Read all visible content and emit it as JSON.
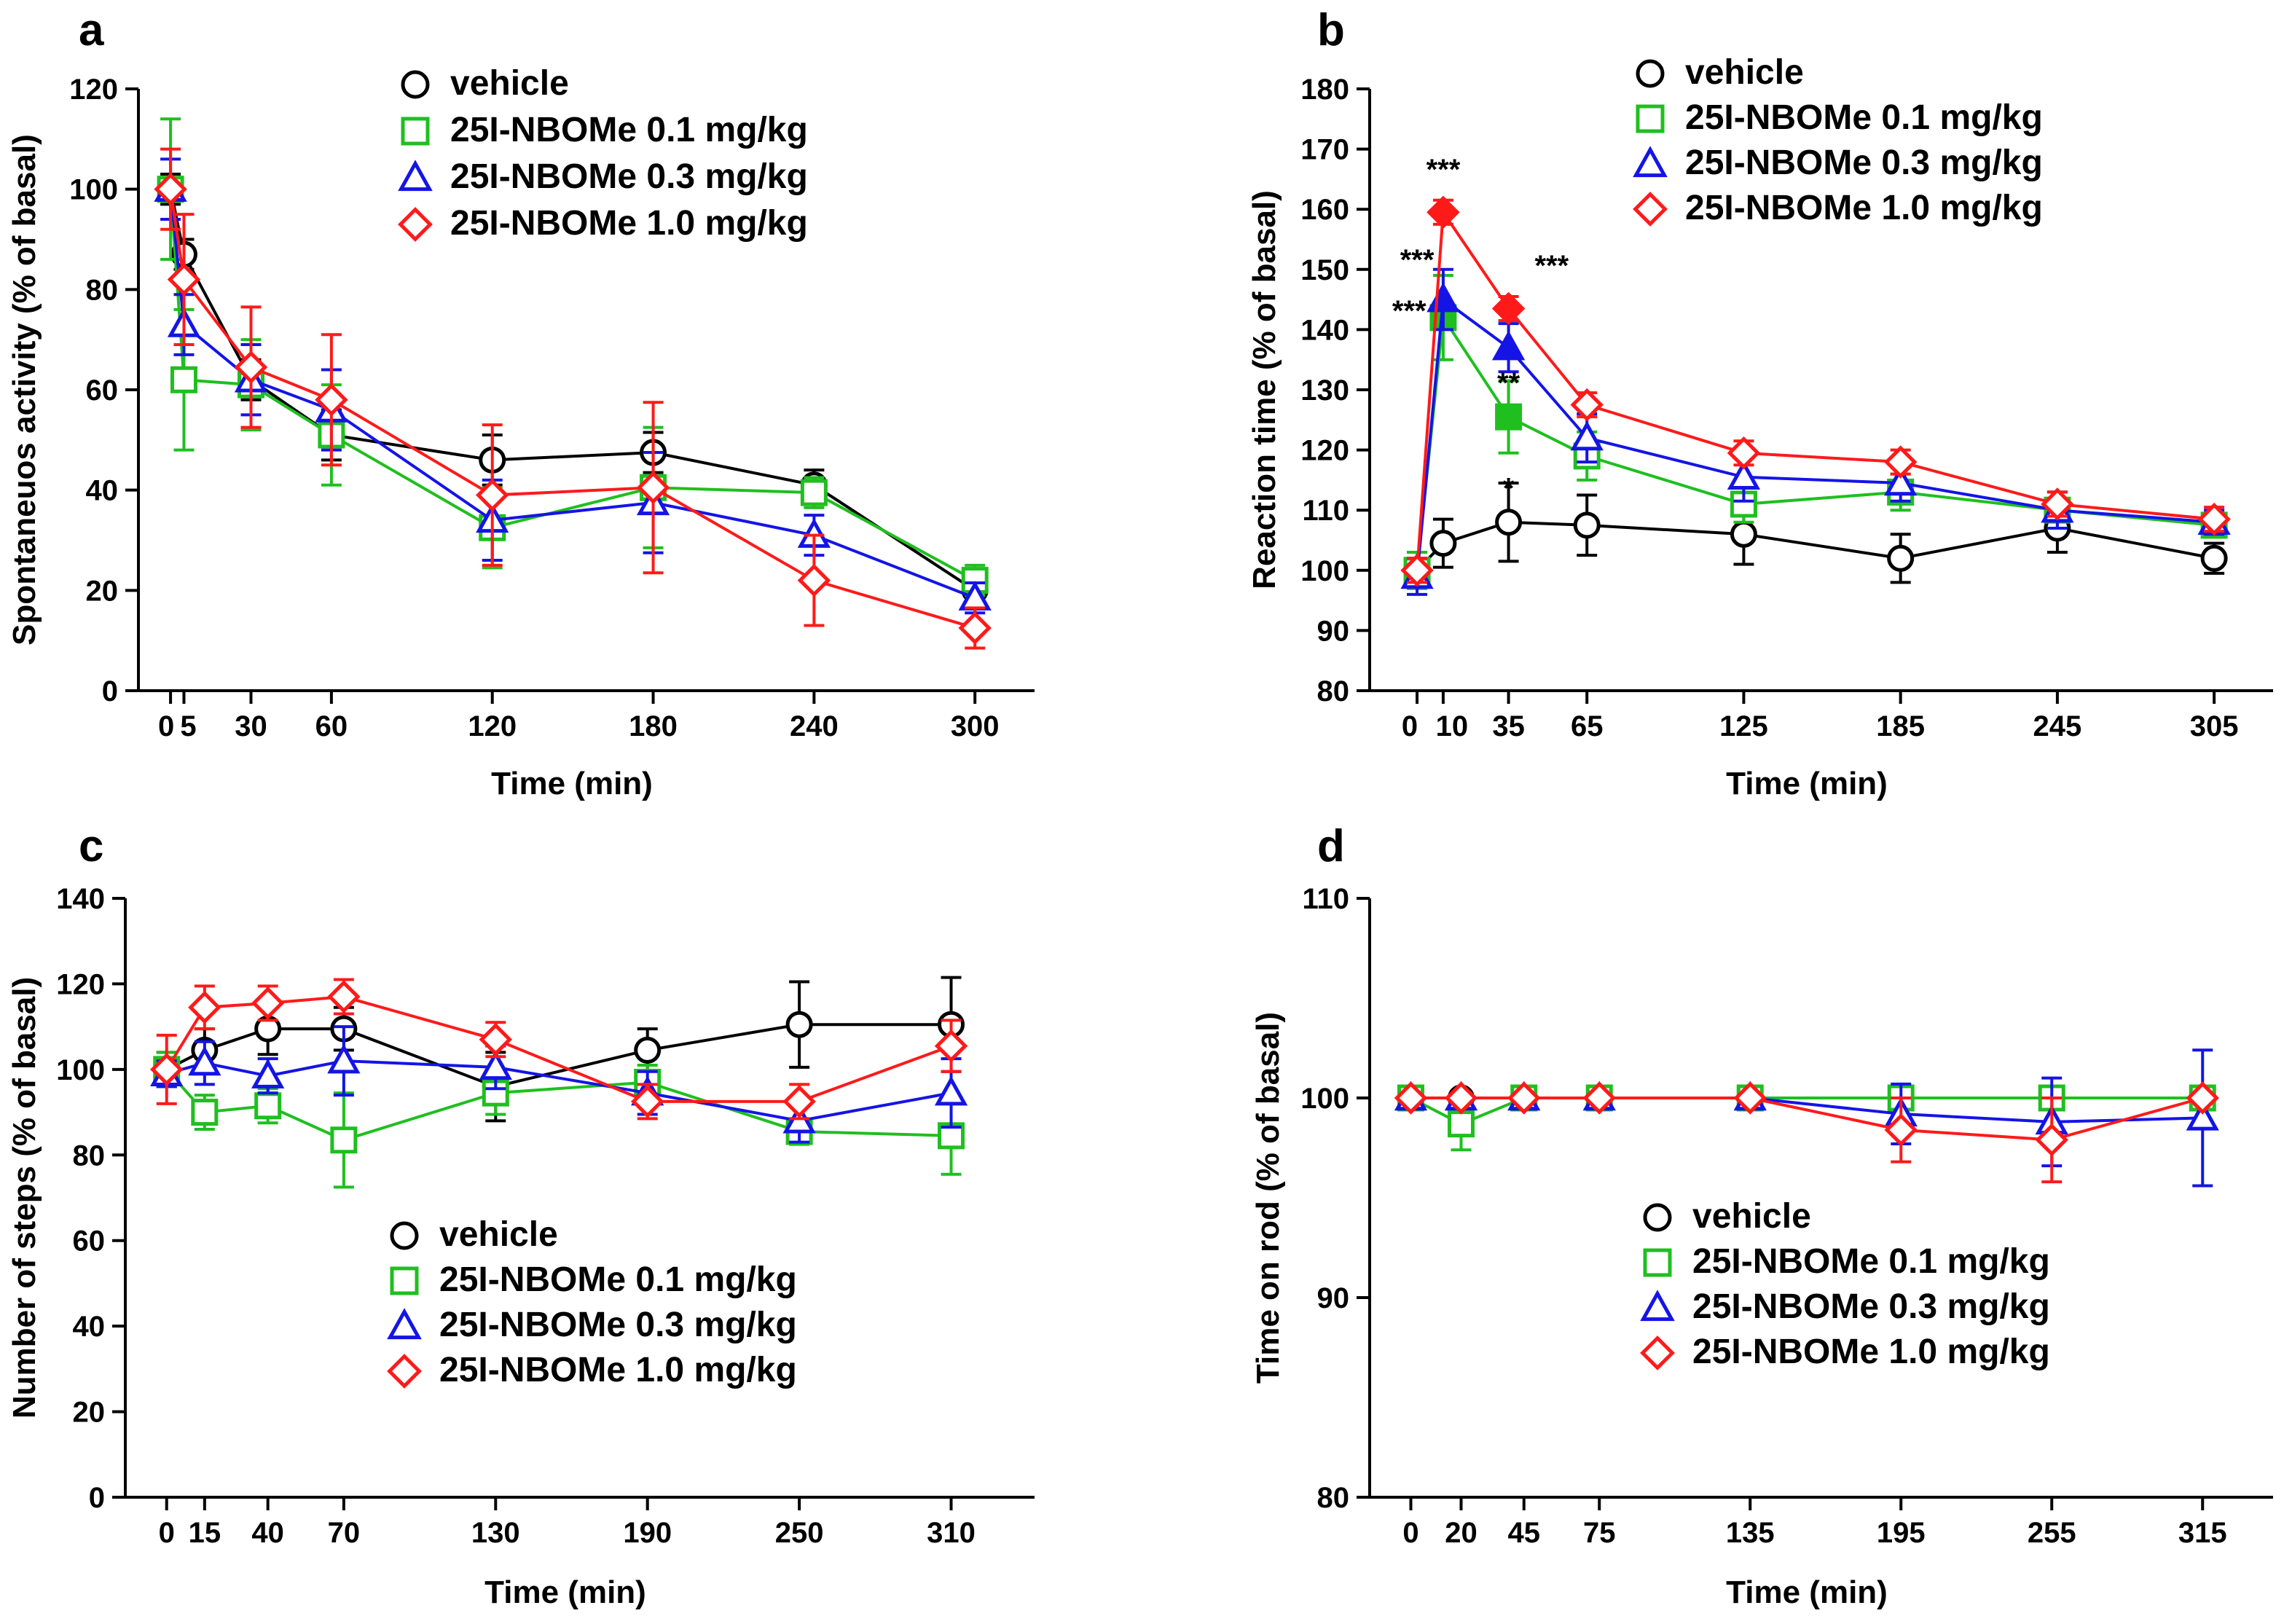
{
  "colors": {
    "vehicle": "#000000",
    "dose_0_1": "#1fbf1f",
    "dose_0_3": "#1414e6",
    "dose_1_0": "#ff1a1a"
  },
  "chart_data": [
    {
      "panel": "a",
      "type": "line",
      "xlabel": "Time (min)",
      "ylabel": "Spontaneuos activity (% of basal)",
      "ylim": [
        0,
        120
      ],
      "yticks": [
        0,
        20,
        40,
        60,
        80,
        100,
        120
      ],
      "xlim": [
        -6,
        310
      ],
      "xticks": [
        0,
        5,
        30,
        60,
        120,
        180,
        240,
        300
      ],
      "xtick_labels": [
        "0",
        "5",
        "30",
        "60",
        "120",
        "180",
        "240",
        "300"
      ],
      "legend": [
        "vehicle",
        "25I-NBOMe 0.1 mg/kg",
        "25I-NBOMe 0.3 mg/kg",
        "25I-NBOMe 1.0 mg/kg"
      ],
      "series": [
        {
          "name": "vehicle",
          "marker": "circle",
          "color": "#000000",
          "x": [
            0,
            5,
            30,
            60,
            120,
            180,
            240,
            300
          ],
          "y": [
            100,
            87,
            62,
            51,
            46,
            47.5,
            41,
            20
          ],
          "err": [
            3,
            3,
            4,
            5,
            5,
            4,
            3,
            3
          ],
          "filled": []
        },
        {
          "name": "25I-NBOMe 0.1 mg/kg",
          "marker": "square",
          "color": "#1fbf1f",
          "x": [
            0,
            5,
            30,
            60,
            120,
            180,
            240,
            300
          ],
          "y": [
            100,
            62,
            61,
            51,
            32.5,
            40.5,
            39.5,
            22
          ],
          "err": [
            14,
            14,
            9,
            10,
            8,
            12,
            3,
            3
          ],
          "filled": []
        },
        {
          "name": "25I-NBOMe 0.3 mg/kg",
          "marker": "triangle",
          "color": "#1414e6",
          "x": [
            0,
            5,
            30,
            60,
            120,
            180,
            240,
            300
          ],
          "y": [
            100,
            73,
            62,
            56,
            34,
            37.5,
            31,
            18.5
          ],
          "err": [
            6,
            6,
            7,
            8,
            8,
            10,
            4,
            3
          ],
          "filled": []
        },
        {
          "name": "25I-NBOMe 1.0 mg/kg",
          "marker": "diamond",
          "color": "#ff1a1a",
          "x": [
            0,
            5,
            30,
            60,
            120,
            180,
            240,
            300
          ],
          "y": [
            100,
            82,
            64.5,
            58,
            39,
            40.5,
            22,
            12.5
          ],
          "err": [
            8,
            13,
            12,
            13,
            14,
            17,
            9,
            4
          ],
          "filled": []
        }
      ],
      "annotations": []
    },
    {
      "panel": "b",
      "type": "line",
      "xlabel": "Time (min)",
      "ylabel": "Reaction time (% of basal)",
      "ylim": [
        80,
        180
      ],
      "yticks": [
        80,
        90,
        100,
        110,
        120,
        130,
        140,
        150,
        160,
        170,
        180
      ],
      "xlim": [
        -12,
        315
      ],
      "xticks": [
        0,
        10,
        35,
        65,
        125,
        185,
        245,
        305
      ],
      "xtick_labels": [
        "0",
        "10",
        "35",
        "65",
        "125",
        "185",
        "245",
        "305"
      ],
      "legend": [
        "vehicle",
        "25I-NBOMe 0.1 mg/kg",
        "25I-NBOMe 0.3 mg/kg",
        "25I-NBOMe 1.0 mg/kg"
      ],
      "series": [
        {
          "name": "vehicle",
          "marker": "circle",
          "color": "#000000",
          "x": [
            0,
            10,
            35,
            65,
            125,
            185,
            245,
            305
          ],
          "y": [
            100,
            104.5,
            108,
            107.5,
            106,
            102,
            107,
            102
          ],
          "err": [
            3,
            4,
            6.5,
            5,
            5,
            4,
            4,
            2.5
          ],
          "filled": []
        },
        {
          "name": "25I-NBOMe 0.1 mg/kg",
          "marker": "square",
          "color": "#1fbf1f",
          "x": [
            0,
            10,
            35,
            65,
            125,
            185,
            245,
            305
          ],
          "y": [
            100,
            142,
            125.5,
            119,
            111,
            113,
            110,
            107.5
          ],
          "err": [
            3,
            7,
            6,
            4,
            3,
            3,
            3,
            2
          ],
          "filled": [
            1,
            2
          ]
        },
        {
          "name": "25I-NBOMe 0.3 mg/kg",
          "marker": "triangle",
          "color": "#1414e6",
          "x": [
            0,
            10,
            35,
            65,
            125,
            185,
            245,
            305
          ],
          "y": [
            99,
            145,
            137,
            122,
            115.5,
            114.5,
            110,
            108
          ],
          "err": [
            3,
            5,
            4,
            4,
            4,
            3,
            3,
            2
          ],
          "filled": [
            1,
            2
          ]
        },
        {
          "name": "25I-NBOMe 1.0 mg/kg",
          "marker": "diamond",
          "color": "#ff1a1a",
          "x": [
            0,
            10,
            35,
            65,
            125,
            185,
            245,
            305
          ],
          "y": [
            100,
            159.5,
            143.5,
            127.5,
            119.5,
            118,
            111,
            108.5
          ],
          "err": [
            2,
            2,
            2,
            2,
            2,
            2,
            2,
            2
          ],
          "filled": [
            1,
            2
          ]
        }
      ],
      "annotations": [
        {
          "text": "***",
          "x": 10,
          "y": 165,
          "anchor": "middle"
        },
        {
          "text": "***",
          "x": 0,
          "y": 150,
          "anchor": "middle"
        },
        {
          "text": "***",
          "x": -3,
          "y": 141.5,
          "anchor": "middle"
        },
        {
          "text": "***",
          "x": 45,
          "y": 149,
          "anchor": "start"
        },
        {
          "text": "**",
          "x": 35,
          "y": 129.5,
          "anchor": "middle"
        },
        {
          "text": "*",
          "x": 35,
          "y": 112,
          "anchor": "middle"
        }
      ]
    },
    {
      "panel": "c",
      "type": "line",
      "xlabel": "Time (min)",
      "ylabel": "Number of steps (% of basal)",
      "ylim": [
        0,
        140
      ],
      "yticks": [
        0,
        20,
        40,
        60,
        80,
        100,
        120,
        140
      ],
      "xlim": [
        -10,
        330
      ],
      "xticks": [
        0,
        15,
        40,
        70,
        130,
        190,
        250,
        310
      ],
      "xtick_labels": [
        "0",
        "15",
        "40",
        "70",
        "130",
        "190",
        "250",
        "310"
      ],
      "legend": [
        "vehicle",
        "25I-NBOMe 0.1 mg/kg",
        "25I-NBOMe 0.3 mg/kg",
        "25I-NBOMe 1.0 mg/kg"
      ],
      "series": [
        {
          "name": "vehicle",
          "marker": "circle",
          "color": "#000000",
          "x": [
            0,
            15,
            40,
            70,
            130,
            190,
            250,
            310
          ],
          "y": [
            100,
            104.5,
            109.5,
            109.5,
            96,
            104.5,
            110.5,
            110.5
          ],
          "err": [
            4,
            5,
            6,
            5,
            8,
            5,
            10,
            11
          ],
          "filled": []
        },
        {
          "name": "25I-NBOMe 0.1 mg/kg",
          "marker": "square",
          "color": "#1fbf1f",
          "x": [
            0,
            15,
            40,
            70,
            130,
            190,
            250,
            310
          ],
          "y": [
            100,
            90,
            91.5,
            83.5,
            94.5,
            97,
            85.5,
            84.5
          ],
          "err": [
            4,
            4,
            4,
            11,
            5,
            4,
            3,
            9
          ],
          "filled": []
        },
        {
          "name": "25I-NBOMe 0.3 mg/kg",
          "marker": "triangle",
          "color": "#1414e6",
          "x": [
            0,
            15,
            40,
            70,
            130,
            190,
            250,
            310
          ],
          "y": [
            99,
            101.5,
            98.5,
            102,
            100.5,
            94.5,
            88,
            94.5
          ],
          "err": [
            3,
            5,
            4,
            8,
            5,
            5,
            5,
            8
          ],
          "filled": []
        },
        {
          "name": "25I-NBOMe 1.0 mg/kg",
          "marker": "diamond",
          "color": "#ff1a1a",
          "x": [
            0,
            15,
            40,
            70,
            130,
            190,
            250,
            310
          ],
          "y": [
            100,
            114.5,
            115.5,
            117,
            107,
            92.5,
            92.5,
            105.5
          ],
          "err": [
            8,
            5,
            4,
            4,
            4,
            4,
            4,
            6
          ],
          "filled": []
        }
      ],
      "annotations": []
    },
    {
      "panel": "d",
      "type": "line",
      "xlabel": "Time (min)",
      "ylabel": "Time on rod (% of basal)",
      "ylim": [
        80,
        110
      ],
      "yticks": [
        80,
        90,
        100,
        110
      ],
      "xlim": [
        -10,
        330
      ],
      "xticks": [
        0,
        20,
        45,
        75,
        135,
        195,
        255,
        315
      ],
      "xtick_labels": [
        "0",
        "20",
        "45",
        "75",
        "135",
        "195",
        "255",
        "315"
      ],
      "legend": [
        "vehicle",
        "25I-NBOMe 0.1 mg/kg",
        "25I-NBOMe 0.3 mg/kg",
        "25I-NBOMe 1.0 mg/kg"
      ],
      "series": [
        {
          "name": "vehicle",
          "marker": "circle",
          "color": "#000000",
          "x": [
            0,
            20,
            45,
            75,
            135,
            195,
            255,
            315
          ],
          "y": [
            100,
            100,
            100,
            100,
            100,
            100,
            100,
            100
          ],
          "err": [
            0,
            0,
            0,
            0,
            0,
            0,
            0,
            0
          ],
          "filled": []
        },
        {
          "name": "25I-NBOMe 0.1 mg/kg",
          "marker": "square",
          "color": "#1fbf1f",
          "x": [
            0,
            20,
            45,
            75,
            135,
            195,
            255,
            315
          ],
          "y": [
            100,
            98.7,
            100,
            100,
            100,
            100,
            100,
            100
          ],
          "err": [
            0,
            1.3,
            0,
            0,
            0,
            0,
            0,
            0
          ],
          "filled": []
        },
        {
          "name": "25I-NBOMe 0.3 mg/kg",
          "marker": "triangle",
          "color": "#1414e6",
          "x": [
            0,
            20,
            45,
            75,
            135,
            195,
            255,
            315
          ],
          "y": [
            100,
            100,
            100,
            100,
            100,
            99.2,
            98.8,
            99
          ],
          "err": [
            0,
            0,
            0,
            0,
            0,
            1.5,
            2.2,
            3.4
          ],
          "filled": []
        },
        {
          "name": "25I-NBOMe 1.0 mg/kg",
          "marker": "diamond",
          "color": "#ff1a1a",
          "x": [
            0,
            20,
            45,
            75,
            135,
            195,
            255,
            315
          ],
          "y": [
            100,
            100,
            100,
            100,
            100,
            98.4,
            97.9,
            100
          ],
          "err": [
            0,
            0,
            0,
            0,
            0,
            1.6,
            2.1,
            0
          ],
          "filled": []
        }
      ],
      "annotations": []
    }
  ]
}
